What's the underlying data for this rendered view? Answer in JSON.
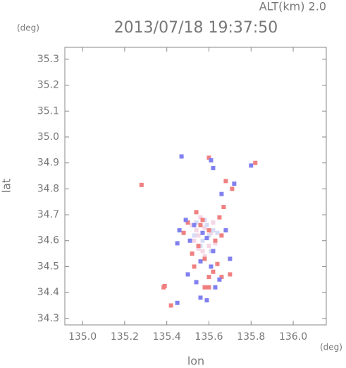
{
  "chart_data": {
    "type": "scatter",
    "title": "2013/07/18 19:37:50",
    "annotation": "ALT(km) 2.0",
    "y_unit": "(deg)",
    "x_unit": "(deg)",
    "x_label": "lon",
    "y_label": "lat",
    "xlim": [
      134.916,
      136.157
    ],
    "ylim": [
      34.275,
      35.346
    ],
    "xticks": [
      {
        "value": 135,
        "label": "135.0"
      },
      135.2,
      135.4,
      135.6,
      135.8,
      {
        "value": 136,
        "label": "136.0"
      }
    ],
    "yticks": [
      34.3,
      34.4,
      34.5,
      34.6,
      34.7,
      34.8,
      34.9,
      {
        "value": 35,
        "label": "35.0"
      },
      35.1,
      35.2,
      35.3
    ],
    "series": [
      {
        "color": "#f4d6e4",
        "x": [
          135.55,
          135.58,
          135.6,
          135.53,
          135.57,
          135.62,
          135.56,
          135.59,
          135.54,
          135.61,
          135.52,
          135.63,
          135.58,
          135.55
        ],
        "values": [
          34.62,
          34.65,
          34.58,
          34.6,
          34.56,
          34.67,
          34.69,
          34.61,
          34.64,
          34.63,
          34.66,
          34.59,
          34.54,
          34.57
        ]
      },
      {
        "color": "#d6dcf6",
        "x": [
          135.57,
          135.6,
          135.54,
          135.62,
          135.56,
          135.59,
          135.53,
          135.61,
          135.58,
          135.64
        ],
        "values": [
          34.6,
          34.62,
          34.67,
          34.64,
          34.58,
          34.66,
          34.62,
          34.56,
          34.68,
          34.63
        ]
      },
      {
        "color": "#f08080",
        "x": [
          135.28,
          135.39,
          135.385,
          135.6,
          135.58,
          135.6,
          135.7,
          135.62,
          135.66,
          135.54,
          135.5,
          135.56,
          135.6,
          135.63,
          135.55,
          135.58,
          135.64,
          135.68,
          135.71,
          135.82,
          135.48,
          135.66,
          135.52,
          135.6,
          135.67,
          135.42,
          135.57,
          135.65,
          135.53
        ],
        "values": [
          34.815,
          34.425,
          34.42,
          34.92,
          34.42,
          34.42,
          34.47,
          34.48,
          34.46,
          34.71,
          34.67,
          34.66,
          34.64,
          34.6,
          34.58,
          34.53,
          34.51,
          34.83,
          34.8,
          34.9,
          34.63,
          34.62,
          34.55,
          34.46,
          34.73,
          34.35,
          34.68,
          34.69,
          34.5
        ]
      },
      {
        "color": "#8080f0",
        "x": [
          135.47,
          135.62,
          135.56,
          135.61,
          135.72,
          135.66,
          135.46,
          135.53,
          135.59,
          135.51,
          135.62,
          135.56,
          135.5,
          135.65,
          135.61,
          135.57,
          135.68,
          135.49,
          135.7,
          135.45,
          135.54,
          135.63,
          135.59,
          135.8,
          135.45
        ],
        "values": [
          34.925,
          34.88,
          34.38,
          34.91,
          34.82,
          34.78,
          34.64,
          34.66,
          34.61,
          34.6,
          34.56,
          34.52,
          34.47,
          34.45,
          34.5,
          34.63,
          34.64,
          34.68,
          34.53,
          34.59,
          34.44,
          34.42,
          34.37,
          34.89,
          34.36
        ]
      }
    ]
  }
}
